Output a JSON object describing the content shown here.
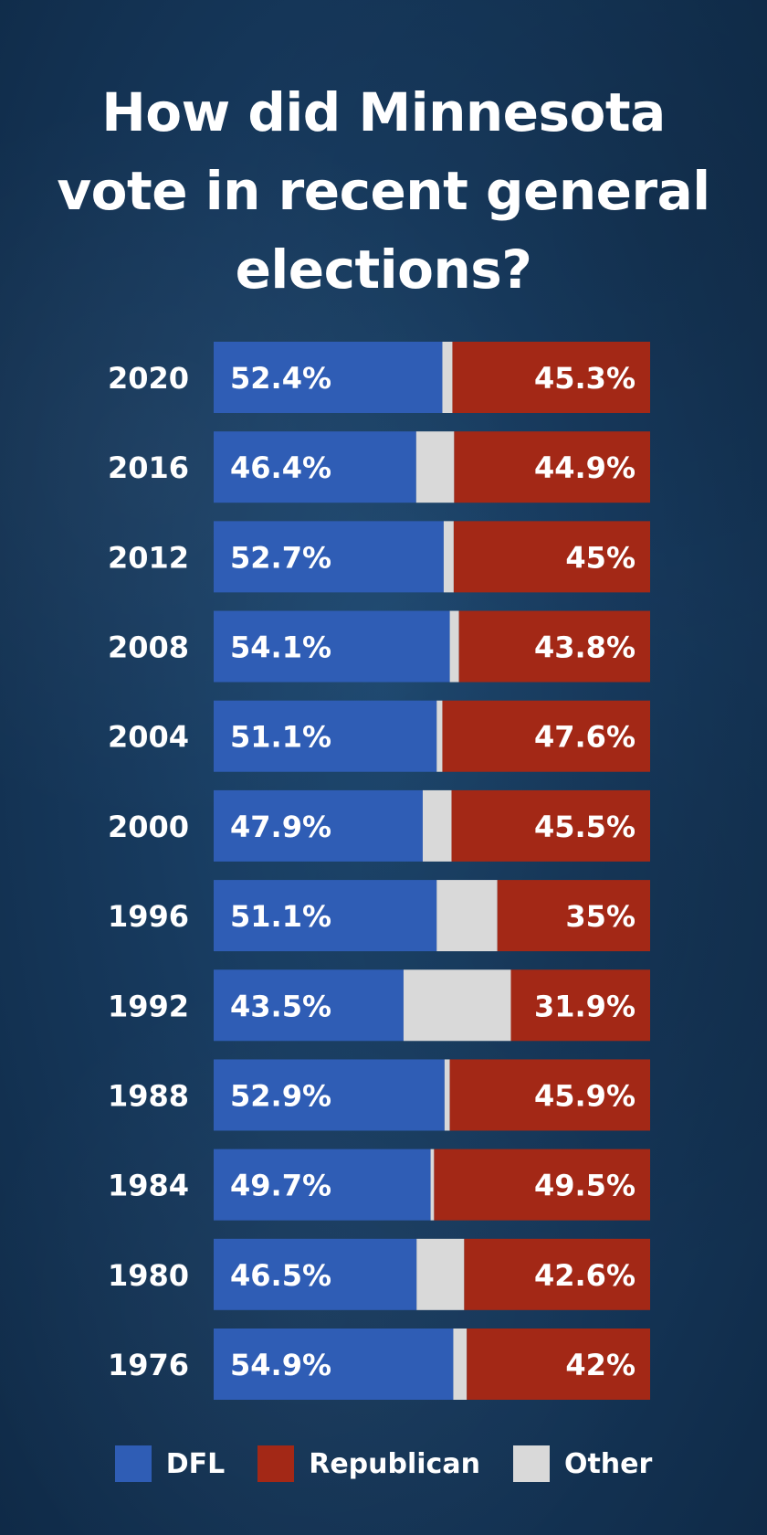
{
  "chart_data": {
    "type": "bar",
    "stacked": true,
    "orientation": "horizontal",
    "title": "How did Minnesota vote in recent general elections?",
    "categories": [
      "2020",
      "2016",
      "2012",
      "2008",
      "2004",
      "2000",
      "1996",
      "1992",
      "1988",
      "1984",
      "1980",
      "1976"
    ],
    "series": [
      {
        "name": "DFL",
        "color": "#2f5db5",
        "values": [
          52.4,
          46.4,
          52.7,
          54.1,
          51.1,
          47.9,
          51.1,
          43.5,
          52.9,
          49.7,
          46.5,
          54.9
        ]
      },
      {
        "name": "Other",
        "color": "#d9d9d9",
        "values": [
          2.3,
          8.7,
          2.3,
          2.1,
          1.3,
          6.6,
          13.9,
          24.6,
          1.2,
          0.8,
          10.9,
          3.1
        ]
      },
      {
        "name": "Republican",
        "color": "#a32816",
        "values": [
          45.3,
          44.9,
          45,
          43.8,
          47.6,
          45.5,
          35,
          31.9,
          45.9,
          49.5,
          42.6,
          42
        ]
      }
    ],
    "data_labels": {
      "DFL": [
        "52.4%",
        "46.4%",
        "52.7%",
        "54.1%",
        "51.1%",
        "47.9%",
        "51.1%",
        "43.5%",
        "52.9%",
        "49.7%",
        "46.5%",
        "54.9%"
      ],
      "Republican": [
        "45.3%",
        "44.9%",
        "45%",
        "43.8%",
        "47.6%",
        "45.5%",
        "35%",
        "31.9%",
        "45.9%",
        "49.5%",
        "42.6%",
        "42%"
      ]
    },
    "xlim": [
      0,
      100
    ],
    "grid": false,
    "legend_position": "bottom-center"
  },
  "legend": {
    "items": [
      {
        "label": "DFL",
        "color": "#2f5db5"
      },
      {
        "label": "Republican",
        "color": "#a32816"
      },
      {
        "label": "Other",
        "color": "#d9d9d9"
      }
    ]
  }
}
